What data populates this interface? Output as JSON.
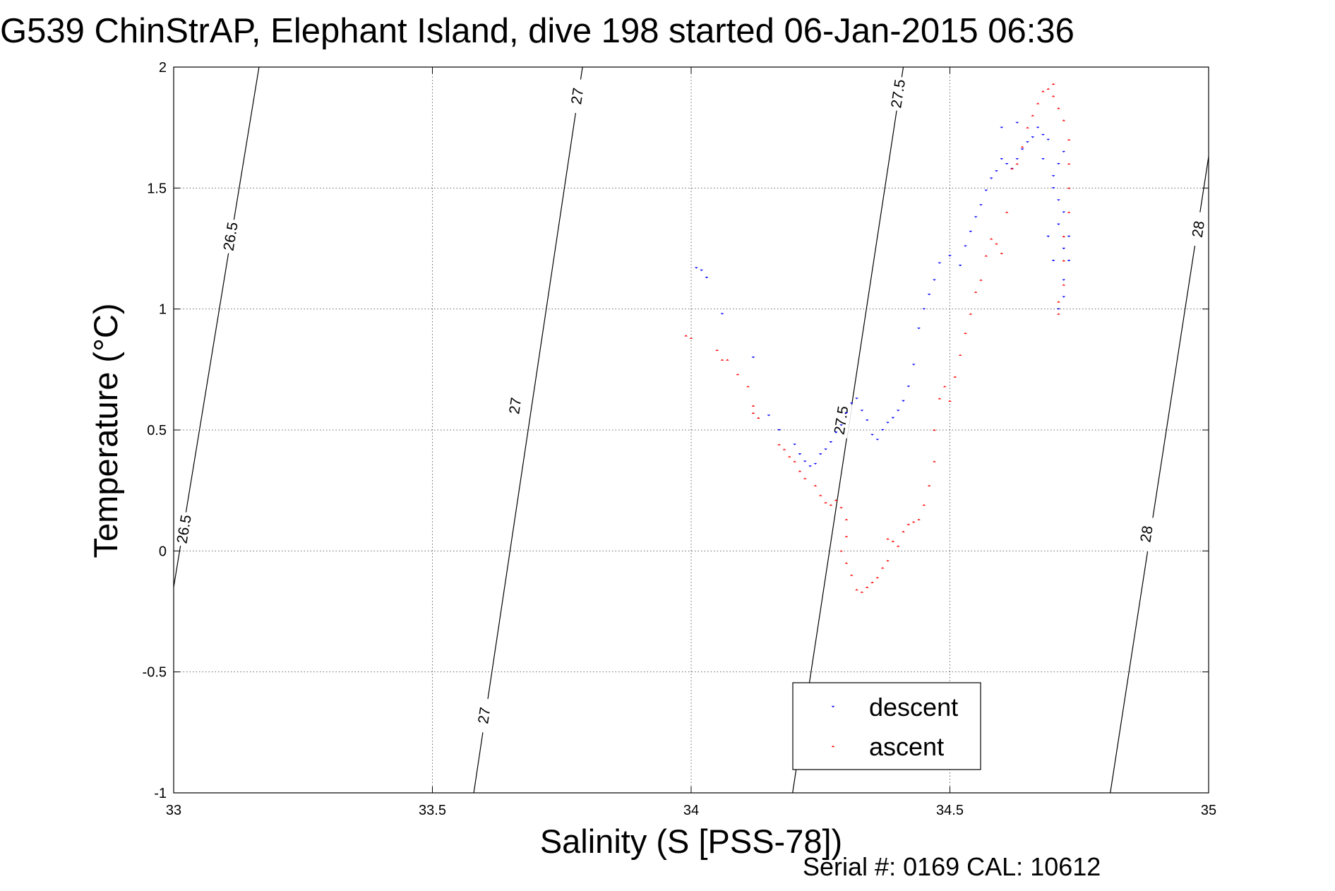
{
  "chart_data": {
    "type": "scatter",
    "title": "G539 ChinStrAP, Elephant Island, dive 198 started 06-Jan-2015 06:36",
    "xlabel": "Salinity (S [PSS-78])",
    "ylabel": "Temperature (°C)",
    "xlim": [
      33,
      35
    ],
    "ylim": [
      -1,
      2
    ],
    "xticks": [
      "33",
      "33.5",
      "34",
      "34.5",
      "35"
    ],
    "yticks": [
      "-1",
      "-0.5",
      "0",
      "0.5",
      "1",
      "1.5",
      "2"
    ],
    "grid": true,
    "legend_position": "lower-right",
    "footer": "Serial #: 0169 CAL: 10612",
    "isopycnals": [
      {
        "label": "26.5",
        "points": [
          [
            33.0,
            -0.15
          ],
          [
            33.165,
            2.0
          ]
        ],
        "label_points": [
          [
            33.02,
            0.09
          ],
          [
            33.11,
            1.3
          ]
        ]
      },
      {
        "label": "27",
        "points": [
          [
            33.58,
            -1.0
          ],
          [
            33.79,
            2.0
          ]
        ],
        "label_points": [
          [
            33.6,
            -0.68
          ],
          [
            33.66,
            0.6
          ],
          [
            33.78,
            1.88
          ]
        ]
      },
      {
        "label": "27.5",
        "points": [
          [
            34.196,
            -1.0
          ],
          [
            34.41,
            2.0
          ]
        ],
        "label_points": [
          [
            34.29,
            0.54
          ],
          [
            34.4,
            1.89
          ]
        ]
      },
      {
        "label": "28",
        "points": [
          [
            34.81,
            -1.0
          ],
          [
            35.0,
            1.63
          ]
        ],
        "label_points": [
          [
            34.88,
            0.07
          ],
          [
            34.98,
            1.33
          ]
        ]
      }
    ],
    "series": [
      {
        "name": "descent",
        "color": "#0000ff",
        "marker": "triangle-down",
        "points": [
          [
            34.01,
            1.17
          ],
          [
            34.02,
            1.16
          ],
          [
            34.03,
            1.13
          ],
          [
            34.06,
            0.98
          ],
          [
            34.12,
            0.8
          ],
          [
            34.15,
            0.56
          ],
          [
            34.17,
            0.5
          ],
          [
            34.2,
            0.44
          ],
          [
            34.21,
            0.4
          ],
          [
            34.22,
            0.37
          ],
          [
            34.23,
            0.35
          ],
          [
            34.24,
            0.36
          ],
          [
            34.25,
            0.4
          ],
          [
            34.26,
            0.42
          ],
          [
            34.27,
            0.45
          ],
          [
            34.28,
            0.49
          ],
          [
            34.29,
            0.52
          ],
          [
            34.3,
            0.57
          ],
          [
            34.31,
            0.61
          ],
          [
            34.32,
            0.63
          ],
          [
            34.33,
            0.58
          ],
          [
            34.34,
            0.54
          ],
          [
            34.35,
            0.48
          ],
          [
            34.36,
            0.46
          ],
          [
            34.37,
            0.5
          ],
          [
            34.38,
            0.53
          ],
          [
            34.39,
            0.55
          ],
          [
            34.4,
            0.58
          ],
          [
            34.41,
            0.62
          ],
          [
            34.42,
            0.68
          ],
          [
            34.43,
            0.77
          ],
          [
            34.44,
            0.92
          ],
          [
            34.45,
            1.0
          ],
          [
            34.46,
            1.06
          ],
          [
            34.47,
            1.12
          ],
          [
            34.48,
            1.19
          ],
          [
            34.5,
            1.22
          ],
          [
            34.52,
            1.18
          ],
          [
            34.53,
            1.26
          ],
          [
            34.54,
            1.32
          ],
          [
            34.55,
            1.38
          ],
          [
            34.56,
            1.43
          ],
          [
            34.57,
            1.49
          ],
          [
            34.58,
            1.54
          ],
          [
            34.59,
            1.57
          ],
          [
            34.6,
            1.62
          ],
          [
            34.61,
            1.6
          ],
          [
            34.62,
            1.58
          ],
          [
            34.63,
            1.62
          ],
          [
            34.64,
            1.66
          ],
          [
            34.65,
            1.69
          ],
          [
            34.66,
            1.71
          ],
          [
            34.67,
            1.75
          ],
          [
            34.68,
            1.72
          ],
          [
            34.69,
            1.7
          ],
          [
            34.69,
            1.3
          ],
          [
            34.7,
            1.5
          ],
          [
            34.7,
            1.55
          ],
          [
            34.7,
            1.2
          ],
          [
            34.71,
            1.6
          ],
          [
            34.71,
            1.45
          ],
          [
            34.71,
            1.35
          ],
          [
            34.72,
            1.65
          ],
          [
            34.72,
            1.4
          ],
          [
            34.72,
            1.25
          ],
          [
            34.72,
            1.12
          ],
          [
            34.73,
            1.3
          ],
          [
            34.73,
            1.2
          ],
          [
            34.72,
            1.05
          ],
          [
            34.71,
            1.0
          ],
          [
            34.6,
            1.75
          ],
          [
            34.63,
            1.77
          ],
          [
            34.68,
            1.62
          ]
        ]
      },
      {
        "name": "ascent",
        "color": "#ff0000",
        "marker": "triangle-up",
        "points": [
          [
            33.99,
            0.89
          ],
          [
            34.0,
            0.88
          ],
          [
            34.05,
            0.83
          ],
          [
            34.06,
            0.79
          ],
          [
            34.07,
            0.79
          ],
          [
            34.09,
            0.73
          ],
          [
            34.11,
            0.68
          ],
          [
            34.12,
            0.6
          ],
          [
            34.12,
            0.57
          ],
          [
            34.13,
            0.55
          ],
          [
            34.17,
            0.44
          ],
          [
            34.18,
            0.42
          ],
          [
            34.19,
            0.39
          ],
          [
            34.2,
            0.37
          ],
          [
            34.21,
            0.33
          ],
          [
            34.22,
            0.3
          ],
          [
            34.24,
            0.27
          ],
          [
            34.25,
            0.23
          ],
          [
            34.26,
            0.2
          ],
          [
            34.27,
            0.19
          ],
          [
            34.28,
            0.21
          ],
          [
            34.29,
            0.18
          ],
          [
            34.3,
            0.13
          ],
          [
            34.3,
            0.06
          ],
          [
            34.29,
            0.0
          ],
          [
            34.3,
            -0.05
          ],
          [
            34.31,
            -0.1
          ],
          [
            34.32,
            -0.16
          ],
          [
            34.33,
            -0.17
          ],
          [
            34.34,
            -0.15
          ],
          [
            34.35,
            -0.13
          ],
          [
            34.36,
            -0.11
          ],
          [
            34.37,
            -0.07
          ],
          [
            34.38,
            -0.04
          ],
          [
            34.38,
            0.05
          ],
          [
            34.39,
            0.04
          ],
          [
            34.4,
            0.02
          ],
          [
            34.41,
            0.08
          ],
          [
            34.42,
            0.11
          ],
          [
            34.43,
            0.12
          ],
          [
            34.44,
            0.13
          ],
          [
            34.45,
            0.19
          ],
          [
            34.46,
            0.27
          ],
          [
            34.47,
            0.37
          ],
          [
            34.47,
            0.5
          ],
          [
            34.48,
            0.63
          ],
          [
            34.49,
            0.68
          ],
          [
            34.5,
            0.62
          ],
          [
            34.51,
            0.72
          ],
          [
            34.52,
            0.81
          ],
          [
            34.53,
            0.9
          ],
          [
            34.54,
            0.98
          ],
          [
            34.55,
            1.07
          ],
          [
            34.56,
            1.12
          ],
          [
            34.57,
            1.22
          ],
          [
            34.58,
            1.29
          ],
          [
            34.59,
            1.27
          ],
          [
            34.6,
            1.23
          ],
          [
            34.61,
            1.4
          ],
          [
            34.62,
            1.58
          ],
          [
            34.63,
            1.6
          ],
          [
            34.64,
            1.67
          ],
          [
            34.65,
            1.75
          ],
          [
            34.66,
            1.8
          ],
          [
            34.67,
            1.85
          ],
          [
            34.68,
            1.9
          ],
          [
            34.69,
            1.91
          ],
          [
            34.7,
            1.93
          ],
          [
            34.7,
            1.88
          ],
          [
            34.71,
            1.83
          ],
          [
            34.72,
            1.78
          ],
          [
            34.73,
            1.7
          ],
          [
            34.73,
            1.6
          ],
          [
            34.73,
            1.5
          ],
          [
            34.73,
            1.4
          ],
          [
            34.72,
            1.3
          ],
          [
            34.72,
            1.2
          ],
          [
            34.72,
            1.1
          ],
          [
            34.71,
            1.03
          ],
          [
            34.71,
            0.98
          ]
        ]
      }
    ]
  }
}
